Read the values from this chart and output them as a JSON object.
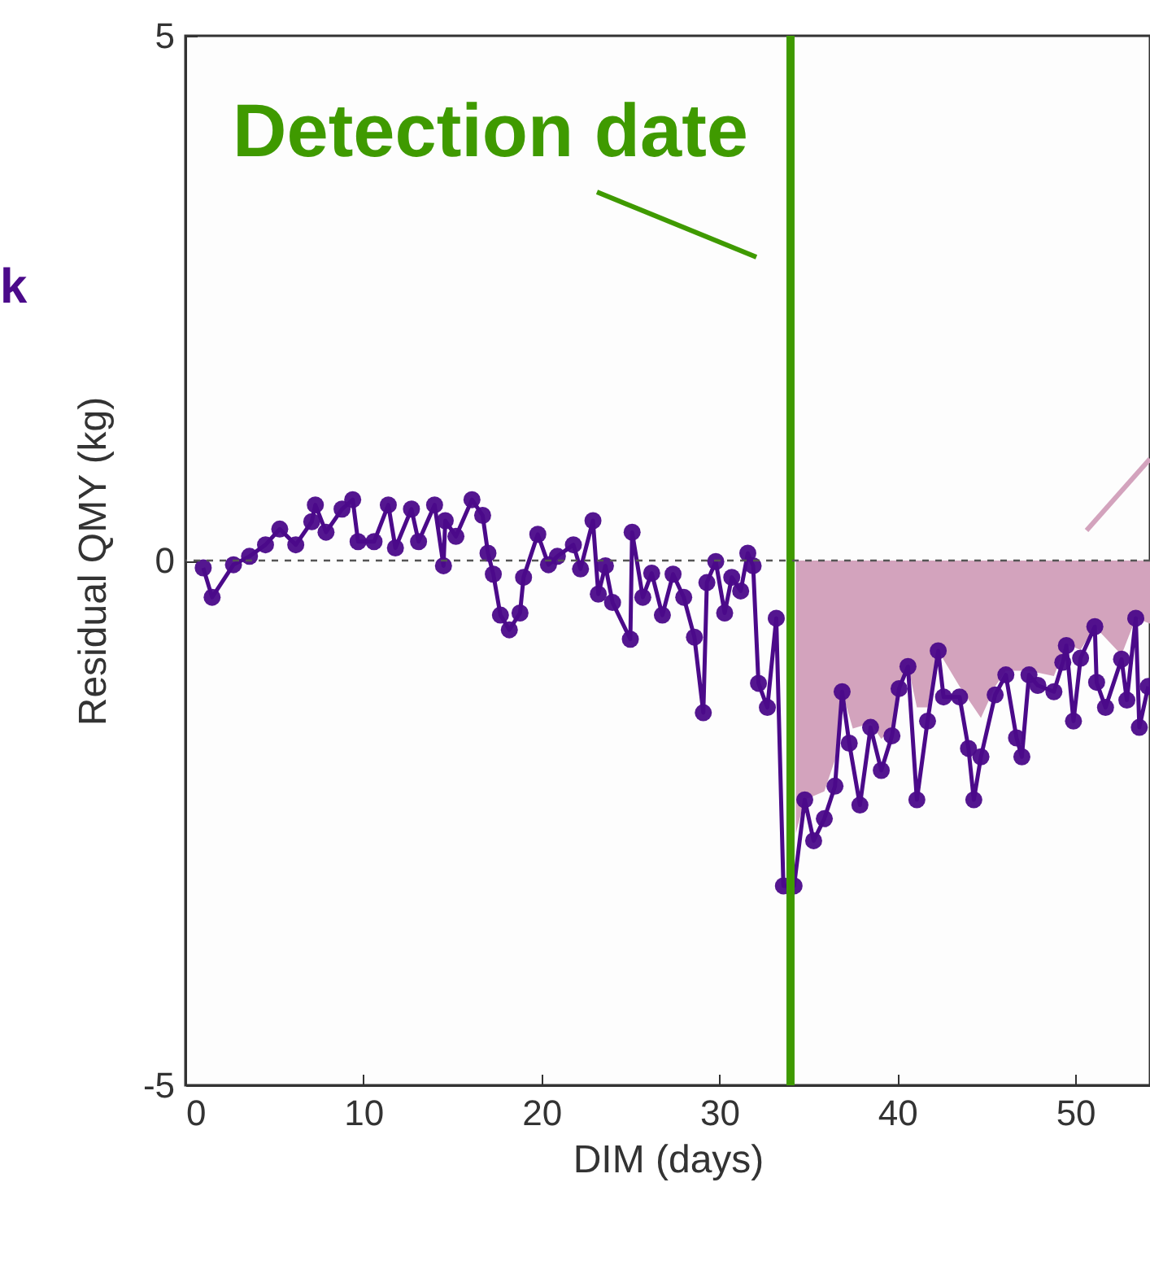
{
  "chart_data": {
    "type": "line",
    "xlabel": "DIM (days)",
    "ylabel": "Residual QMY (kg)",
    "xlim": [
      0,
      54.2
    ],
    "ylim": [
      -5,
      5
    ],
    "xticks": [
      0,
      10,
      20,
      30,
      40,
      50
    ],
    "yticks": [
      -5,
      0,
      5
    ],
    "grid": false,
    "line_style": "solid",
    "annotations": [
      "k"
    ],
    "ref_lines": [
      {
        "axis": "x",
        "value": 34,
        "label": "Detection date",
        "color": "#3f9a00"
      },
      {
        "axis": "y",
        "value": 0,
        "color": "#555555",
        "line_style": "dashed"
      }
    ],
    "series": [
      {
        "type": "area",
        "color": "#d3a3bd",
        "x": [
          34.3,
          34.8,
          35.9,
          36.5,
          36.9,
          37.5,
          38.5,
          39.1,
          39.7,
          40.1,
          40.6,
          41.1,
          41.7,
          42.3,
          43.5,
          44.7,
          45.5,
          46.1,
          47.4,
          48.8,
          49.5,
          50.3,
          51.1,
          52.6,
          53.4,
          54.2
        ],
        "values": [
          -2.6,
          -2.28,
          -2.2,
          -1.9,
          -1.25,
          -1.6,
          -1.55,
          -1.7,
          -1.6,
          -1.2,
          -1.0,
          -1.4,
          -1.4,
          -0.86,
          -1.2,
          -1.5,
          -1.2,
          -1.05,
          -1.05,
          -1.1,
          -0.8,
          -0.85,
          -0.63,
          -0.9,
          -0.55,
          -0.6
        ]
      },
      {
        "color": "#4b0a8a",
        "marker": "circle",
        "x": [
          1.0,
          1.5,
          2.7,
          3.6,
          4.5,
          5.3,
          6.2,
          7.1,
          7.3,
          7.9,
          8.8,
          9.4,
          9.7,
          10.6,
          11.4,
          11.8,
          12.7,
          13.1,
          14.0,
          14.5,
          14.6,
          15.2,
          16.1,
          16.7,
          17.0,
          17.3,
          17.7,
          18.2,
          18.8,
          19.0,
          19.8,
          20.4,
          20.9,
          21.8,
          22.2,
          22.9,
          23.2,
          23.6,
          24.0,
          25.0,
          25.1,
          25.7,
          26.2,
          26.8,
          27.4,
          28.0,
          28.6,
          29.1,
          29.3,
          29.8,
          30.3,
          30.7,
          31.2,
          31.6,
          31.9,
          32.2,
          32.7,
          33.2,
          33.6,
          34.2,
          34.8,
          35.3,
          35.9,
          36.5,
          36.9,
          37.3,
          37.9,
          38.5,
          39.1,
          39.7,
          40.1,
          40.6,
          41.1,
          41.7,
          42.3,
          42.6,
          43.5,
          44.0,
          44.3,
          44.7,
          45.5,
          46.1,
          46.7,
          47.0,
          47.4,
          47.9,
          48.8,
          49.3,
          49.5,
          49.9,
          50.3,
          51.1,
          51.2,
          51.7,
          52.6,
          52.9,
          53.4,
          53.6,
          54.1
        ],
        "values": [
          -0.07,
          -0.35,
          -0.04,
          0.04,
          0.15,
          0.3,
          0.15,
          0.37,
          0.53,
          0.27,
          0.49,
          0.58,
          0.18,
          0.18,
          0.53,
          0.12,
          0.49,
          0.18,
          0.53,
          -0.05,
          0.38,
          0.23,
          0.58,
          0.43,
          0.07,
          -0.13,
          -0.52,
          -0.66,
          -0.5,
          -0.16,
          0.25,
          -0.04,
          0.04,
          0.15,
          -0.08,
          0.38,
          -0.32,
          -0.05,
          -0.4,
          -0.75,
          0.27,
          -0.35,
          -0.12,
          -0.52,
          -0.13,
          -0.35,
          -0.73,
          -1.45,
          -0.21,
          -0.01,
          -0.5,
          -0.16,
          -0.29,
          0.07,
          -0.05,
          -1.17,
          -1.4,
          -0.55,
          -3.1,
          -3.1,
          -2.28,
          -2.67,
          -2.46,
          -2.15,
          -1.25,
          -1.74,
          -2.33,
          -1.59,
          -2.0,
          -1.67,
          -1.22,
          -1.01,
          -2.28,
          -1.53,
          -0.86,
          -1.3,
          -1.3,
          -1.79,
          -2.28,
          -1.87,
          -1.28,
          -1.09,
          -1.69,
          -1.87,
          -1.09,
          -1.19,
          -1.25,
          -0.97,
          -0.81,
          -1.53,
          -0.93,
          -0.63,
          -1.16,
          -1.4,
          -0.94,
          -1.33,
          -0.55,
          -1.59,
          -1.2
        ]
      }
    ]
  }
}
